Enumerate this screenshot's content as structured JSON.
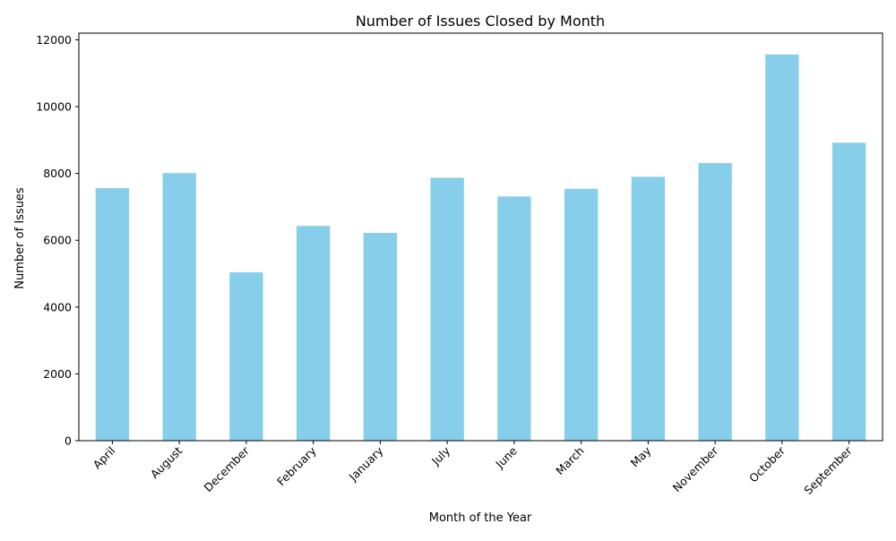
{
  "chart_data": {
    "type": "bar",
    "title": "Number of Issues Closed by Month",
    "xlabel": "Month of the Year",
    "ylabel": "Number of Issues",
    "categories": [
      "April",
      "August",
      "December",
      "February",
      "January",
      "July",
      "June",
      "March",
      "May",
      "November",
      "October",
      "September"
    ],
    "values": [
      7560,
      8010,
      5040,
      6430,
      6220,
      7870,
      7310,
      7540,
      7900,
      8310,
      11560,
      8920
    ],
    "ylim": [
      0,
      12200
    ],
    "yticks": [
      0,
      2000,
      4000,
      6000,
      8000,
      10000,
      12000
    ],
    "bar_color": "#87ceeb",
    "grid": false,
    "legend": "none",
    "xtick_rotation": "45 degrees"
  }
}
